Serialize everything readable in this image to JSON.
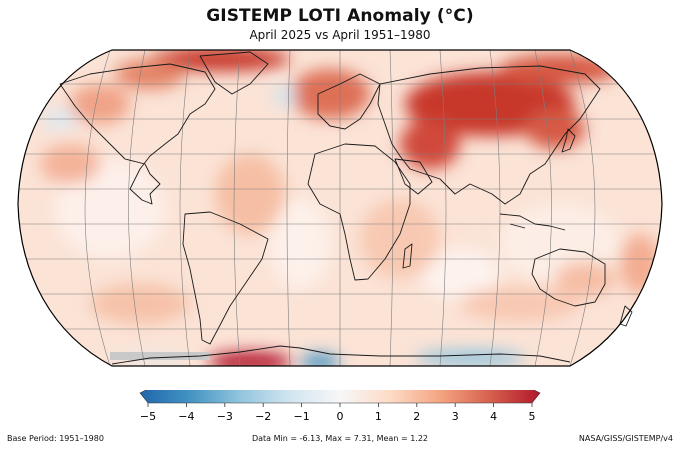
{
  "title": "GISTEMP LOTI Anomaly (°C)",
  "subtitle": "April 2025 vs April 1951–1980",
  "footer": {
    "left": "Base Period: 1951–1980",
    "center": "Data Min = -6.13, Max = 7.31, Mean = 1.22",
    "right": "NASA/GISS/GISTEMP/v4"
  },
  "colorbar": {
    "min": -5,
    "max": 5,
    "tick_labels": [
      "−5",
      "−4",
      "−3",
      "−2",
      "−1",
      "0",
      "1",
      "2",
      "3",
      "4",
      "5"
    ],
    "colors": [
      "#2166ac",
      "#4393c3",
      "#92c5de",
      "#d1e5f0",
      "#f7f7f7",
      "#fddbc7",
      "#f4a582",
      "#d6604d",
      "#b2182b"
    ]
  },
  "map": {
    "projection": "Robinson",
    "stats": {
      "min": -6.13,
      "max": 7.31,
      "mean": 1.22
    }
  }
}
